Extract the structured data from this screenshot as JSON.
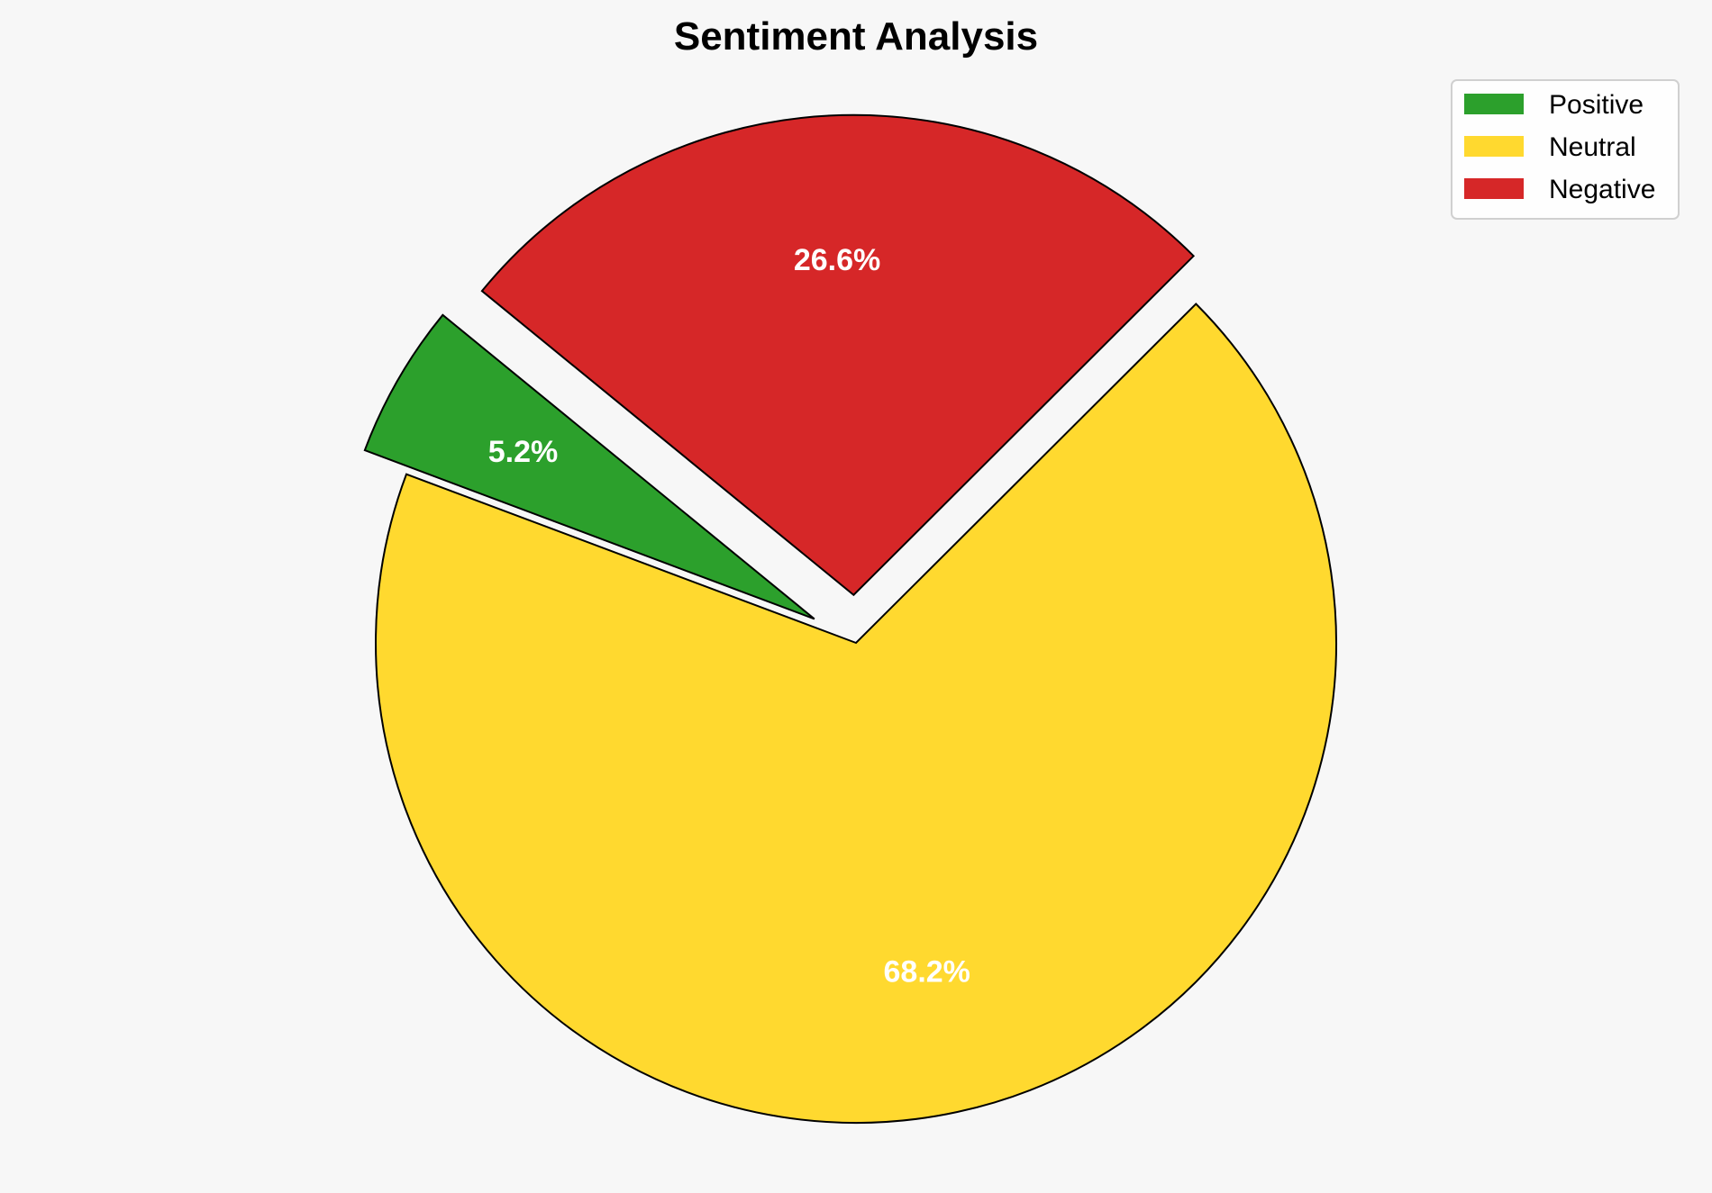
{
  "chart_data": {
    "type": "pie",
    "title": "Sentiment Analysis",
    "categories": [
      "Positive",
      "Neutral",
      "Negative"
    ],
    "values": [
      5.2,
      68.2,
      26.6
    ],
    "labels": [
      "5.2%",
      "68.2%",
      "26.6%"
    ],
    "colors": [
      "#2ca02c",
      "#ffd92f",
      "#d62728"
    ],
    "explode": [
      0.1,
      0,
      0.1
    ],
    "start_angle": 140.7,
    "direction": "counterclockwise",
    "legend": {
      "position": "top-right",
      "entries": [
        "Positive",
        "Neutral",
        "Negative"
      ]
    },
    "background": "#f7f7f7"
  }
}
